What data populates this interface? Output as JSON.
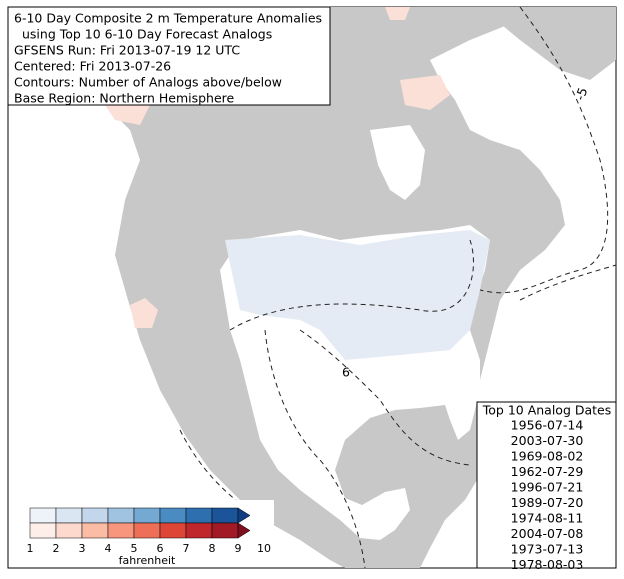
{
  "title_lines": [
    "6-10 Day Composite 2 m Temperature Anomalies",
    "using Top 10 6-10 Day Forecast Analogs",
    "GFSENS Run: Fri 2013-07-19 12 UTC",
    "Centered: Fri 2013-07-26",
    "Contours: Number of Analogs above/below",
    "Base Region: Northern Hemisphere"
  ],
  "analogs": {
    "header": "Top 10 Analog Dates",
    "dates": [
      "1956-07-14",
      "2003-07-30",
      "1969-08-02",
      "1962-07-29",
      "1996-07-21",
      "1989-07-20",
      "1974-08-11",
      "2004-07-08",
      "1973-07-13",
      "1978-08-03"
    ]
  },
  "colorbar": {
    "ticks": [
      1,
      2,
      3,
      4,
      5,
      6,
      7,
      8,
      9,
      10
    ],
    "label": "fahrenheit",
    "cold_colors": [
      "#eef3fa",
      "#dbe6f3",
      "#c3d6ec",
      "#9fc3e0",
      "#73a9d2",
      "#4a8cc2",
      "#2e6fb0",
      "#1c5499",
      "#0f3f80"
    ],
    "warm_colors": [
      "#fdeee9",
      "#fcd9cc",
      "#fbbca6",
      "#f7967c",
      "#ee6f58",
      "#dd4537",
      "#c0272d",
      "#a11a25",
      "#7f0f1e"
    ]
  },
  "contour_labels": [
    "-5",
    "6",
    "-6"
  ]
}
